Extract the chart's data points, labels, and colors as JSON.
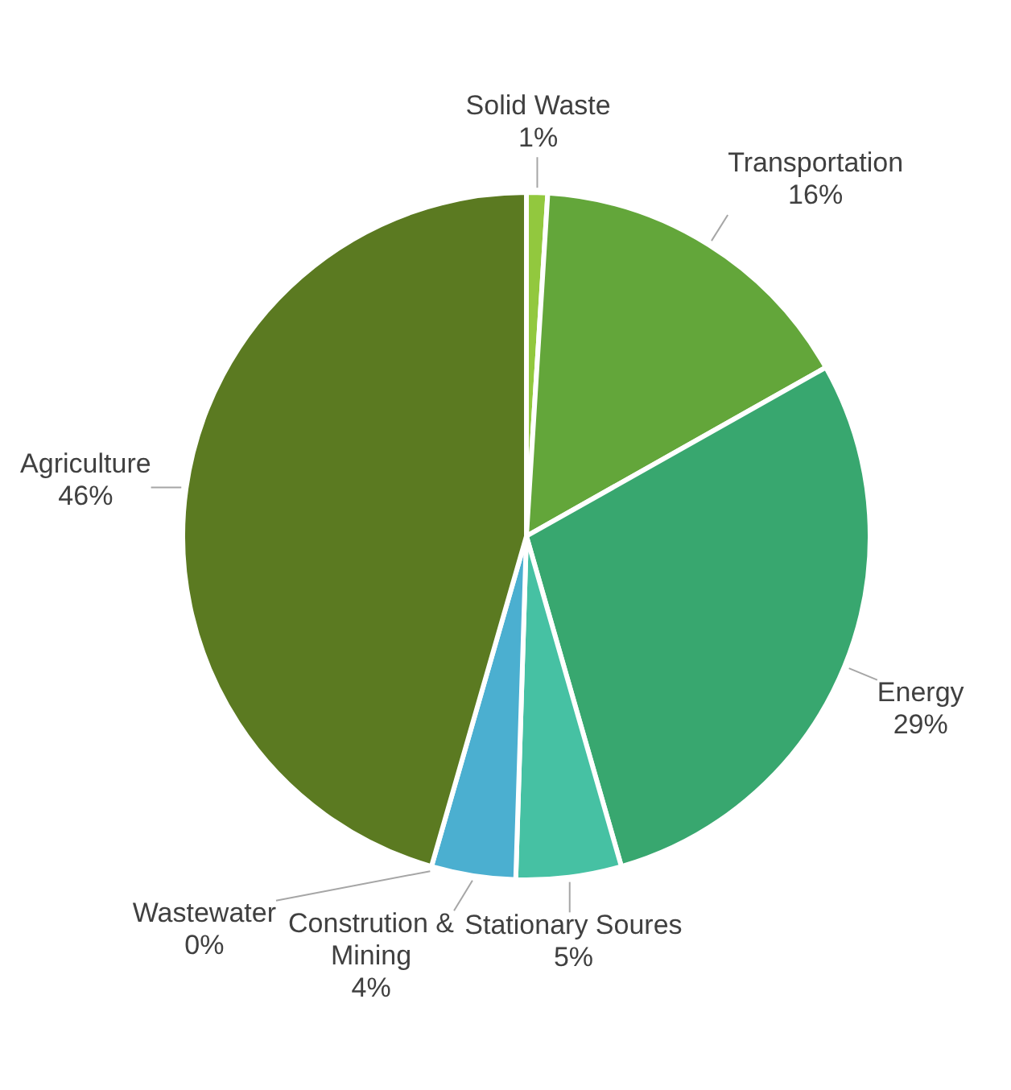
{
  "chart_data": {
    "type": "pie",
    "categories": [
      "Solid Waste",
      "Transportation",
      "Energy",
      "Stationary Soures",
      "Constrution & Mining",
      "Wastewater",
      "Agriculture"
    ],
    "values": [
      1,
      16,
      29,
      5,
      4,
      0,
      46
    ],
    "value_labels": [
      "1%",
      "16%",
      "29%",
      "5%",
      "4%",
      "0%",
      "46%"
    ],
    "colors": [
      "#92c83e",
      "#63a63a",
      "#38a76f",
      "#46c1a3",
      "#4bafd0",
      "#4bafd0",
      "#5b7a21"
    ],
    "legend": false
  }
}
